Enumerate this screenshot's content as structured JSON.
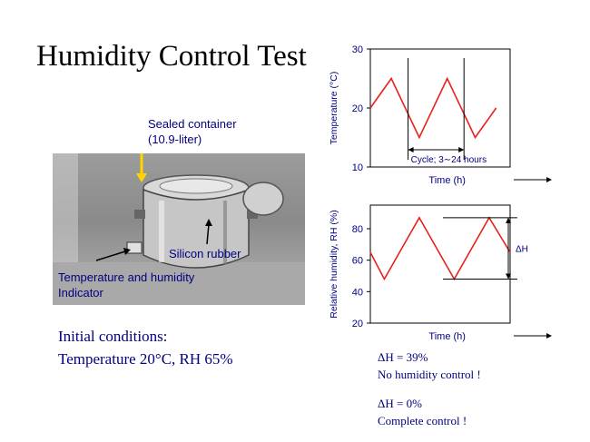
{
  "title": "Humidity Control Test",
  "photo": {
    "container_label_1": "Sealed container",
    "container_label_2": "(10.9-liter)",
    "rubber_label": "Silicon rubber",
    "indicator_label_1": "Temperature and humidity",
    "indicator_label_2": "Indicator"
  },
  "initial_conditions": {
    "heading": "Initial conditions:",
    "values": "Temperature 20°C, RH 65%"
  },
  "results": {
    "no_control_value": "ΔH = 39%",
    "no_control_text": "No humidity control !",
    "complete_value": "ΔH = 0%",
    "complete_text": "Complete control !"
  },
  "colors": {
    "line": "#e8221b",
    "text": "#000080",
    "axis": "#000000"
  },
  "chart_data": [
    {
      "type": "line",
      "ylabel": "Temperature (°C)",
      "xlabel": "Time (h)",
      "ylim": [
        10,
        30
      ],
      "yticks": [
        10,
        20,
        30
      ],
      "x": [
        0,
        1.5,
        3.5,
        5.5,
        7.5,
        9
      ],
      "series": [
        {
          "values": [
            20,
            25,
            15,
            25,
            15,
            20
          ]
        }
      ],
      "annotation": "Cycle; 3∼24 hours"
    },
    {
      "type": "line",
      "ylabel": "Relative humidity, RH (%)",
      "xlabel": "Time (h)",
      "ylim": [
        20,
        95
      ],
      "yticks": [
        20,
        40,
        60,
        80
      ],
      "x": [
        0,
        1,
        3.5,
        6,
        8.5,
        10
      ],
      "series": [
        {
          "values": [
            65,
            48,
            87,
            48,
            87,
            65
          ]
        }
      ],
      "annotation": "ΔH"
    }
  ]
}
